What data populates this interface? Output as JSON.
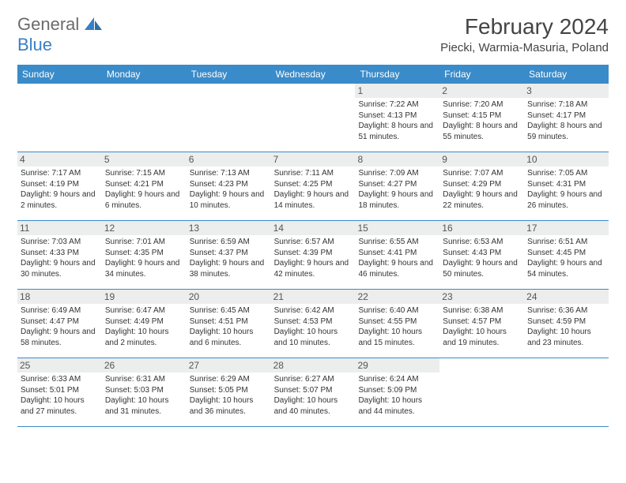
{
  "logo": {
    "general": "General",
    "blue": "Blue"
  },
  "title": "February 2024",
  "location": "Piecki, Warmia-Masuria, Poland",
  "colors": {
    "header_bg": "#3a8bc9",
    "header_text": "#ffffff",
    "daynum_bg": "#eceded",
    "border": "#3a8bc9",
    "logo_gray": "#6b6b6b",
    "logo_blue": "#3a7fc4"
  },
  "weekdays": [
    "Sunday",
    "Monday",
    "Tuesday",
    "Wednesday",
    "Thursday",
    "Friday",
    "Saturday"
  ],
  "weeks": [
    [
      {
        "n": "",
        "sr": "",
        "ss": "",
        "dl": ""
      },
      {
        "n": "",
        "sr": "",
        "ss": "",
        "dl": ""
      },
      {
        "n": "",
        "sr": "",
        "ss": "",
        "dl": ""
      },
      {
        "n": "",
        "sr": "",
        "ss": "",
        "dl": ""
      },
      {
        "n": "1",
        "sr": "Sunrise: 7:22 AM",
        "ss": "Sunset: 4:13 PM",
        "dl": "Daylight: 8 hours and 51 minutes."
      },
      {
        "n": "2",
        "sr": "Sunrise: 7:20 AM",
        "ss": "Sunset: 4:15 PM",
        "dl": "Daylight: 8 hours and 55 minutes."
      },
      {
        "n": "3",
        "sr": "Sunrise: 7:18 AM",
        "ss": "Sunset: 4:17 PM",
        "dl": "Daylight: 8 hours and 59 minutes."
      }
    ],
    [
      {
        "n": "4",
        "sr": "Sunrise: 7:17 AM",
        "ss": "Sunset: 4:19 PM",
        "dl": "Daylight: 9 hours and 2 minutes."
      },
      {
        "n": "5",
        "sr": "Sunrise: 7:15 AM",
        "ss": "Sunset: 4:21 PM",
        "dl": "Daylight: 9 hours and 6 minutes."
      },
      {
        "n": "6",
        "sr": "Sunrise: 7:13 AM",
        "ss": "Sunset: 4:23 PM",
        "dl": "Daylight: 9 hours and 10 minutes."
      },
      {
        "n": "7",
        "sr": "Sunrise: 7:11 AM",
        "ss": "Sunset: 4:25 PM",
        "dl": "Daylight: 9 hours and 14 minutes."
      },
      {
        "n": "8",
        "sr": "Sunrise: 7:09 AM",
        "ss": "Sunset: 4:27 PM",
        "dl": "Daylight: 9 hours and 18 minutes."
      },
      {
        "n": "9",
        "sr": "Sunrise: 7:07 AM",
        "ss": "Sunset: 4:29 PM",
        "dl": "Daylight: 9 hours and 22 minutes."
      },
      {
        "n": "10",
        "sr": "Sunrise: 7:05 AM",
        "ss": "Sunset: 4:31 PM",
        "dl": "Daylight: 9 hours and 26 minutes."
      }
    ],
    [
      {
        "n": "11",
        "sr": "Sunrise: 7:03 AM",
        "ss": "Sunset: 4:33 PM",
        "dl": "Daylight: 9 hours and 30 minutes."
      },
      {
        "n": "12",
        "sr": "Sunrise: 7:01 AM",
        "ss": "Sunset: 4:35 PM",
        "dl": "Daylight: 9 hours and 34 minutes."
      },
      {
        "n": "13",
        "sr": "Sunrise: 6:59 AM",
        "ss": "Sunset: 4:37 PM",
        "dl": "Daylight: 9 hours and 38 minutes."
      },
      {
        "n": "14",
        "sr": "Sunrise: 6:57 AM",
        "ss": "Sunset: 4:39 PM",
        "dl": "Daylight: 9 hours and 42 minutes."
      },
      {
        "n": "15",
        "sr": "Sunrise: 6:55 AM",
        "ss": "Sunset: 4:41 PM",
        "dl": "Daylight: 9 hours and 46 minutes."
      },
      {
        "n": "16",
        "sr": "Sunrise: 6:53 AM",
        "ss": "Sunset: 4:43 PM",
        "dl": "Daylight: 9 hours and 50 minutes."
      },
      {
        "n": "17",
        "sr": "Sunrise: 6:51 AM",
        "ss": "Sunset: 4:45 PM",
        "dl": "Daylight: 9 hours and 54 minutes."
      }
    ],
    [
      {
        "n": "18",
        "sr": "Sunrise: 6:49 AM",
        "ss": "Sunset: 4:47 PM",
        "dl": "Daylight: 9 hours and 58 minutes."
      },
      {
        "n": "19",
        "sr": "Sunrise: 6:47 AM",
        "ss": "Sunset: 4:49 PM",
        "dl": "Daylight: 10 hours and 2 minutes."
      },
      {
        "n": "20",
        "sr": "Sunrise: 6:45 AM",
        "ss": "Sunset: 4:51 PM",
        "dl": "Daylight: 10 hours and 6 minutes."
      },
      {
        "n": "21",
        "sr": "Sunrise: 6:42 AM",
        "ss": "Sunset: 4:53 PM",
        "dl": "Daylight: 10 hours and 10 minutes."
      },
      {
        "n": "22",
        "sr": "Sunrise: 6:40 AM",
        "ss": "Sunset: 4:55 PM",
        "dl": "Daylight: 10 hours and 15 minutes."
      },
      {
        "n": "23",
        "sr": "Sunrise: 6:38 AM",
        "ss": "Sunset: 4:57 PM",
        "dl": "Daylight: 10 hours and 19 minutes."
      },
      {
        "n": "24",
        "sr": "Sunrise: 6:36 AM",
        "ss": "Sunset: 4:59 PM",
        "dl": "Daylight: 10 hours and 23 minutes."
      }
    ],
    [
      {
        "n": "25",
        "sr": "Sunrise: 6:33 AM",
        "ss": "Sunset: 5:01 PM",
        "dl": "Daylight: 10 hours and 27 minutes."
      },
      {
        "n": "26",
        "sr": "Sunrise: 6:31 AM",
        "ss": "Sunset: 5:03 PM",
        "dl": "Daylight: 10 hours and 31 minutes."
      },
      {
        "n": "27",
        "sr": "Sunrise: 6:29 AM",
        "ss": "Sunset: 5:05 PM",
        "dl": "Daylight: 10 hours and 36 minutes."
      },
      {
        "n": "28",
        "sr": "Sunrise: 6:27 AM",
        "ss": "Sunset: 5:07 PM",
        "dl": "Daylight: 10 hours and 40 minutes."
      },
      {
        "n": "29",
        "sr": "Sunrise: 6:24 AM",
        "ss": "Sunset: 5:09 PM",
        "dl": "Daylight: 10 hours and 44 minutes."
      },
      {
        "n": "",
        "sr": "",
        "ss": "",
        "dl": ""
      },
      {
        "n": "",
        "sr": "",
        "ss": "",
        "dl": ""
      }
    ]
  ]
}
